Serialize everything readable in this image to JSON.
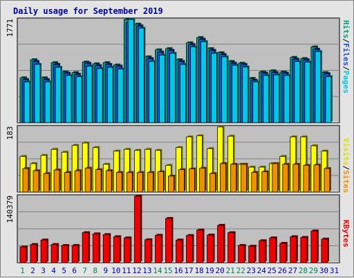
{
  "chart_data": {
    "type": "bar",
    "title": "Daily usage for September 2019",
    "days": [
      "1",
      "2",
      "3",
      "4",
      "5",
      "6",
      "7",
      "8",
      "9",
      "10",
      "11",
      "12",
      "13",
      "14",
      "15",
      "16",
      "17",
      "18",
      "19",
      "20",
      "21",
      "22",
      "23",
      "24",
      "25",
      "26",
      "27",
      "28",
      "29",
      "30",
      "31"
    ],
    "weekend_days": [
      "1",
      "7",
      "8",
      "14",
      "15",
      "21",
      "22",
      "28",
      "29"
    ],
    "panels": [
      {
        "id": "requests",
        "max_label": "1771",
        "ymax": 1771,
        "series": [
          {
            "name": "Pages",
            "color": "#00c8e8",
            "values": [
              700,
              1000,
              700,
              950,
              810,
              790,
              970,
              930,
              950,
              920,
              1771,
              1620,
              1050,
              1160,
              1190,
              1000,
              1300,
              1390,
              1190,
              1130,
              985,
              955,
              700,
              810,
              820,
              810,
              1050,
              1040,
              1220,
              790,
              null
            ]
          },
          {
            "name": "Files",
            "color": "#1e50d8",
            "values": [
              740,
              1050,
              740,
              1000,
              850,
              830,
              1020,
              980,
              1000,
              970,
              1720,
              1660,
              1100,
              1210,
              1240,
              1050,
              1340,
              1430,
              1240,
              1170,
              1020,
              1000,
              730,
              850,
              860,
              850,
              1090,
              1080,
              1260,
              840,
              null
            ]
          },
          {
            "name": "Hits",
            "color": "#00a080",
            "values": [
              770,
              1080,
              770,
              1030,
              870,
              860,
              1040,
              1010,
              1030,
              990,
              1771,
              1690,
              1130,
              1250,
              1270,
              1080,
              1370,
              1460,
              1270,
              1200,
              1050,
              1020,
              760,
              870,
              890,
              870,
              1120,
              1100,
              1300,
              860,
              null
            ]
          }
        ]
      },
      {
        "id": "visitors",
        "max_label": "183",
        "ymax": 183,
        "series": [
          {
            "name": "Sites",
            "color": "#f09000",
            "values": [
              66,
              60,
              52,
              62,
              55,
              60,
              67,
              63,
              60,
              55,
              55,
              55,
              55,
              57,
              45,
              63,
              65,
              67,
              52,
              80,
              78,
              78,
              55,
              57,
              80,
              78,
              78,
              75,
              76,
              66,
              null
            ]
          },
          {
            "name": "Visits",
            "color": "#ffff00",
            "values": [
              100,
              80,
              103,
              120,
              112,
              131,
              138,
              125,
              78,
              115,
              120,
              117,
              120,
              117,
              75,
              125,
              155,
              158,
              122,
              183,
              157,
              78,
              70,
              70,
              80,
              100,
              155,
              155,
              130,
              115,
              null
            ]
          }
        ]
      },
      {
        "id": "kbytes",
        "max_label": "140379",
        "ymax": 140379,
        "series": [
          {
            "name": "KBytes",
            "color": "#f00000",
            "values": [
              33500,
              38500,
              48000,
              38500,
              36500,
              36500,
              63500,
              61000,
              59500,
              55000,
              52500,
              140379,
              48500,
              58000,
              93500,
              48000,
              57500,
              69000,
              58500,
              79000,
              63500,
              36500,
              35000,
              46500,
              52500,
              41000,
              55000,
              53500,
              67000,
              50000,
              null
            ]
          }
        ]
      }
    ],
    "axis_labels": [
      "Pages",
      "Files",
      "Hits",
      "Sites",
      "Visits",
      "KBytes"
    ],
    "separator": "/"
  },
  "colors": {
    "plot_bg": "#c0c0c0",
    "weekday_label": "#0000a0",
    "weekend_label": "#00805a",
    "bar_edge": "#000000"
  }
}
